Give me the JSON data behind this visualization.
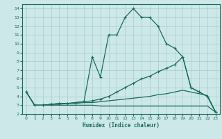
{
  "xlabel": "Humidex (Indice chaleur)",
  "bg_color": "#cce8e8",
  "grid_color": "#aacccc",
  "line_color": "#1a6b5a",
  "xlim": [
    -0.5,
    23.5
  ],
  "ylim": [
    2,
    14.5
  ],
  "xticks": [
    0,
    1,
    2,
    3,
    4,
    5,
    6,
    7,
    8,
    9,
    10,
    11,
    12,
    13,
    14,
    15,
    16,
    17,
    18,
    19,
    20,
    21,
    22,
    23
  ],
  "yticks": [
    2,
    3,
    4,
    5,
    6,
    7,
    8,
    9,
    10,
    11,
    12,
    13,
    14
  ],
  "series": [
    {
      "x": [
        0,
        1,
        2,
        3,
        4,
        5,
        6,
        7,
        8,
        9,
        10,
        11,
        12,
        13,
        14,
        15,
        16,
        17,
        18,
        19,
        20,
        21,
        22,
        23
      ],
      "y": [
        4.5,
        3.0,
        3.0,
        3.1,
        3.2,
        3.2,
        3.3,
        3.4,
        8.5,
        6.2,
        11.0,
        11.0,
        13.0,
        14.0,
        13.0,
        13.0,
        12.0,
        10.0,
        9.5,
        8.5,
        5.0,
        4.5,
        4.0,
        2.2
      ],
      "marker": "+",
      "lw": 0.9
    },
    {
      "x": [
        0,
        1,
        2,
        3,
        4,
        5,
        6,
        7,
        8,
        9,
        10,
        11,
        12,
        13,
        14,
        15,
        16,
        17,
        18,
        19,
        20,
        21,
        22,
        23
      ],
      "y": [
        4.5,
        3.0,
        3.0,
        3.1,
        3.2,
        3.2,
        3.3,
        3.4,
        3.5,
        3.7,
        4.0,
        4.5,
        5.0,
        5.5,
        6.0,
        6.3,
        6.8,
        7.2,
        7.6,
        8.5,
        5.0,
        4.5,
        4.0,
        2.2
      ],
      "marker": "+",
      "lw": 0.9
    },
    {
      "x": [
        0,
        1,
        2,
        3,
        4,
        5,
        6,
        7,
        8,
        9,
        10,
        11,
        12,
        13,
        14,
        15,
        16,
        17,
        18,
        19,
        20,
        21,
        22,
        23
      ],
      "y": [
        4.5,
        3.0,
        3.0,
        3.1,
        3.1,
        3.2,
        3.2,
        3.3,
        3.3,
        3.4,
        3.5,
        3.6,
        3.7,
        3.8,
        3.9,
        4.0,
        4.2,
        4.3,
        4.5,
        4.7,
        4.5,
        4.3,
        4.1,
        2.2
      ],
      "marker": null,
      "lw": 0.9
    },
    {
      "x": [
        0,
        1,
        2,
        3,
        4,
        5,
        6,
        7,
        8,
        9,
        10,
        11,
        12,
        13,
        14,
        15,
        16,
        17,
        18,
        19,
        20,
        21,
        22,
        23
      ],
      "y": [
        4.5,
        3.0,
        3.0,
        3.0,
        3.0,
        3.0,
        3.0,
        3.0,
        3.0,
        2.9,
        2.9,
        2.9,
        2.9,
        2.9,
        2.9,
        2.9,
        2.9,
        2.9,
        2.9,
        2.9,
        2.9,
        2.9,
        2.9,
        2.2
      ],
      "marker": null,
      "lw": 0.9
    }
  ]
}
